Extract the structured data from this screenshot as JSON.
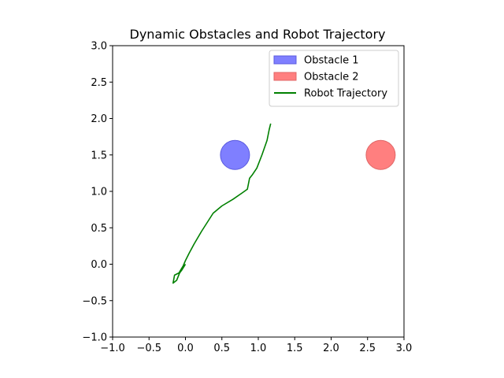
{
  "chart_data": {
    "type": "line",
    "title": "Dynamic Obstacles and Robot Trajectory",
    "xlabel": "",
    "ylabel": "",
    "xlim": [
      -1.0,
      3.0
    ],
    "ylim": [
      -1.0,
      3.0
    ],
    "xticks": [
      "−1.0",
      "−0.5",
      "0.0",
      "0.5",
      "1.0",
      "1.5",
      "2.0",
      "2.5",
      "3.0"
    ],
    "yticks": [
      "−1.0",
      "−0.5",
      "0.0",
      "0.5",
      "1.0",
      "1.5",
      "2.0",
      "2.5",
      "3.0"
    ],
    "grid": false,
    "legend_position": "top-right",
    "obstacles": [
      {
        "name": "Obstacle 1",
        "center": [
          0.68,
          1.5
        ],
        "radius": 0.2,
        "color": "#7f7fff",
        "edge": "#5b5bdf"
      },
      {
        "name": "Obstacle 2",
        "center": [
          2.68,
          1.5
        ],
        "radius": 0.2,
        "color": "#ff7f7f",
        "edge": "#e06666"
      }
    ],
    "series": [
      {
        "name": "Robot Trajectory",
        "color": "#008000",
        "x": [
          0.0,
          -0.05,
          -0.08,
          -0.12,
          -0.17,
          -0.15,
          -0.09,
          -0.03,
          0.0,
          0.05,
          0.12,
          0.22,
          0.38,
          0.5,
          0.65,
          0.78,
          0.85,
          0.88,
          0.92,
          0.98,
          1.05,
          1.12,
          1.15,
          1.17
        ],
        "y": [
          0.0,
          -0.08,
          -0.12,
          -0.22,
          -0.26,
          -0.15,
          -0.12,
          -0.02,
          0.05,
          0.15,
          0.28,
          0.45,
          0.7,
          0.8,
          0.89,
          0.98,
          1.03,
          1.18,
          1.23,
          1.32,
          1.5,
          1.7,
          1.85,
          1.93
        ]
      }
    ]
  }
}
